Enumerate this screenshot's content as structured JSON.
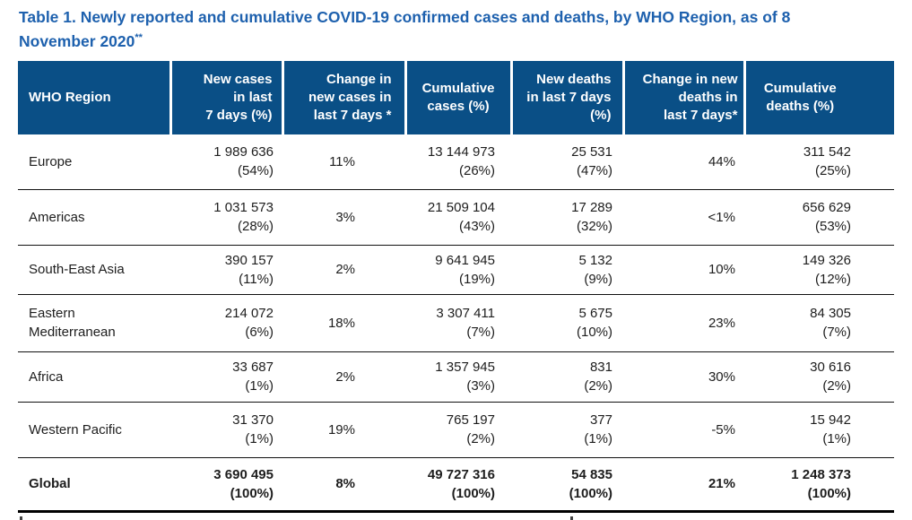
{
  "title": {
    "text": "Table 1. Newly reported and cumulative COVID-19 confirmed cases and deaths, by WHO Region, as of 8\nNovember 2020",
    "superscript": "**"
  },
  "colors": {
    "header_background": "#0A4F86",
    "title_text": "#1E61AE",
    "body_text": "#1d1d1d",
    "row_divider": "#111111"
  },
  "table": {
    "columns": [
      {
        "label": "WHO Region"
      },
      {
        "label": "New cases\nin last\n7 days (%)"
      },
      {
        "label": "Change in\nnew cases in\nlast 7 days *"
      },
      {
        "label": "Cumulative\ncases (%)"
      },
      {
        "label": "New deaths\nin last 7 days\n(%)"
      },
      {
        "label": "Change in new\ndeaths in\nlast 7 days*"
      },
      {
        "label": "Cumulative\ndeaths (%)"
      }
    ],
    "rows": [
      {
        "region": "Europe",
        "new_cases": "1 989 636",
        "new_cases_pct": "(54%)",
        "change_new_cases": "11%",
        "cumulative_cases": "13 144 973",
        "cumulative_cases_pct": "(26%)",
        "new_deaths": "25 531",
        "new_deaths_pct": "(47%)",
        "change_new_deaths": "44%",
        "cumulative_deaths": "311 542",
        "cumulative_deaths_pct": "(25%)"
      },
      {
        "region": "Americas",
        "new_cases": "1 031 573",
        "new_cases_pct": "(28%)",
        "change_new_cases": "3%",
        "cumulative_cases": "21 509 104",
        "cumulative_cases_pct": "(43%)",
        "new_deaths": "17 289",
        "new_deaths_pct": "(32%)",
        "change_new_deaths": "<1%",
        "cumulative_deaths": "656 629",
        "cumulative_deaths_pct": "(53%)"
      },
      {
        "region": "South-East Asia",
        "new_cases": "390 157",
        "new_cases_pct": "(11%)",
        "change_new_cases": "2%",
        "cumulative_cases": "9 641 945",
        "cumulative_cases_pct": "(19%)",
        "new_deaths": "5 132",
        "new_deaths_pct": "(9%)",
        "change_new_deaths": "10%",
        "cumulative_deaths": "149 326",
        "cumulative_deaths_pct": "(12%)"
      },
      {
        "region": "Eastern Mediterranean",
        "new_cases": "214 072",
        "new_cases_pct": "(6%)",
        "change_new_cases": "18%",
        "cumulative_cases": "3 307 411",
        "cumulative_cases_pct": "(7%)",
        "new_deaths": "5 675",
        "new_deaths_pct": "(10%)",
        "change_new_deaths": "23%",
        "cumulative_deaths": "84 305",
        "cumulative_deaths_pct": "(7%)"
      },
      {
        "region": "Africa",
        "new_cases": "33 687",
        "new_cases_pct": "(1%)",
        "change_new_cases": "2%",
        "cumulative_cases": "1 357 945",
        "cumulative_cases_pct": "(3%)",
        "new_deaths": "831",
        "new_deaths_pct": "(2%)",
        "change_new_deaths": "30%",
        "cumulative_deaths": "30 616",
        "cumulative_deaths_pct": "(2%)"
      },
      {
        "region": "Western Pacific",
        "new_cases": "31 370",
        "new_cases_pct": "(1%)",
        "change_new_cases": "19%",
        "cumulative_cases": "765 197",
        "cumulative_cases_pct": "(2%)",
        "new_deaths": "377",
        "new_deaths_pct": "(1%)",
        "change_new_deaths": "-5%",
        "cumulative_deaths": "15 942",
        "cumulative_deaths_pct": "(1%)"
      },
      {
        "region": "Global",
        "new_cases": "3 690 495",
        "new_cases_pct": "(100%)",
        "change_new_cases": "8%",
        "cumulative_cases": "49 727 316",
        "cumulative_cases_pct": "(100%)",
        "new_deaths": "54 835",
        "new_deaths_pct": "(100%)",
        "change_new_deaths": "21%",
        "cumulative_deaths": "1 248 373",
        "cumulative_deaths_pct": "(100%)"
      }
    ]
  }
}
